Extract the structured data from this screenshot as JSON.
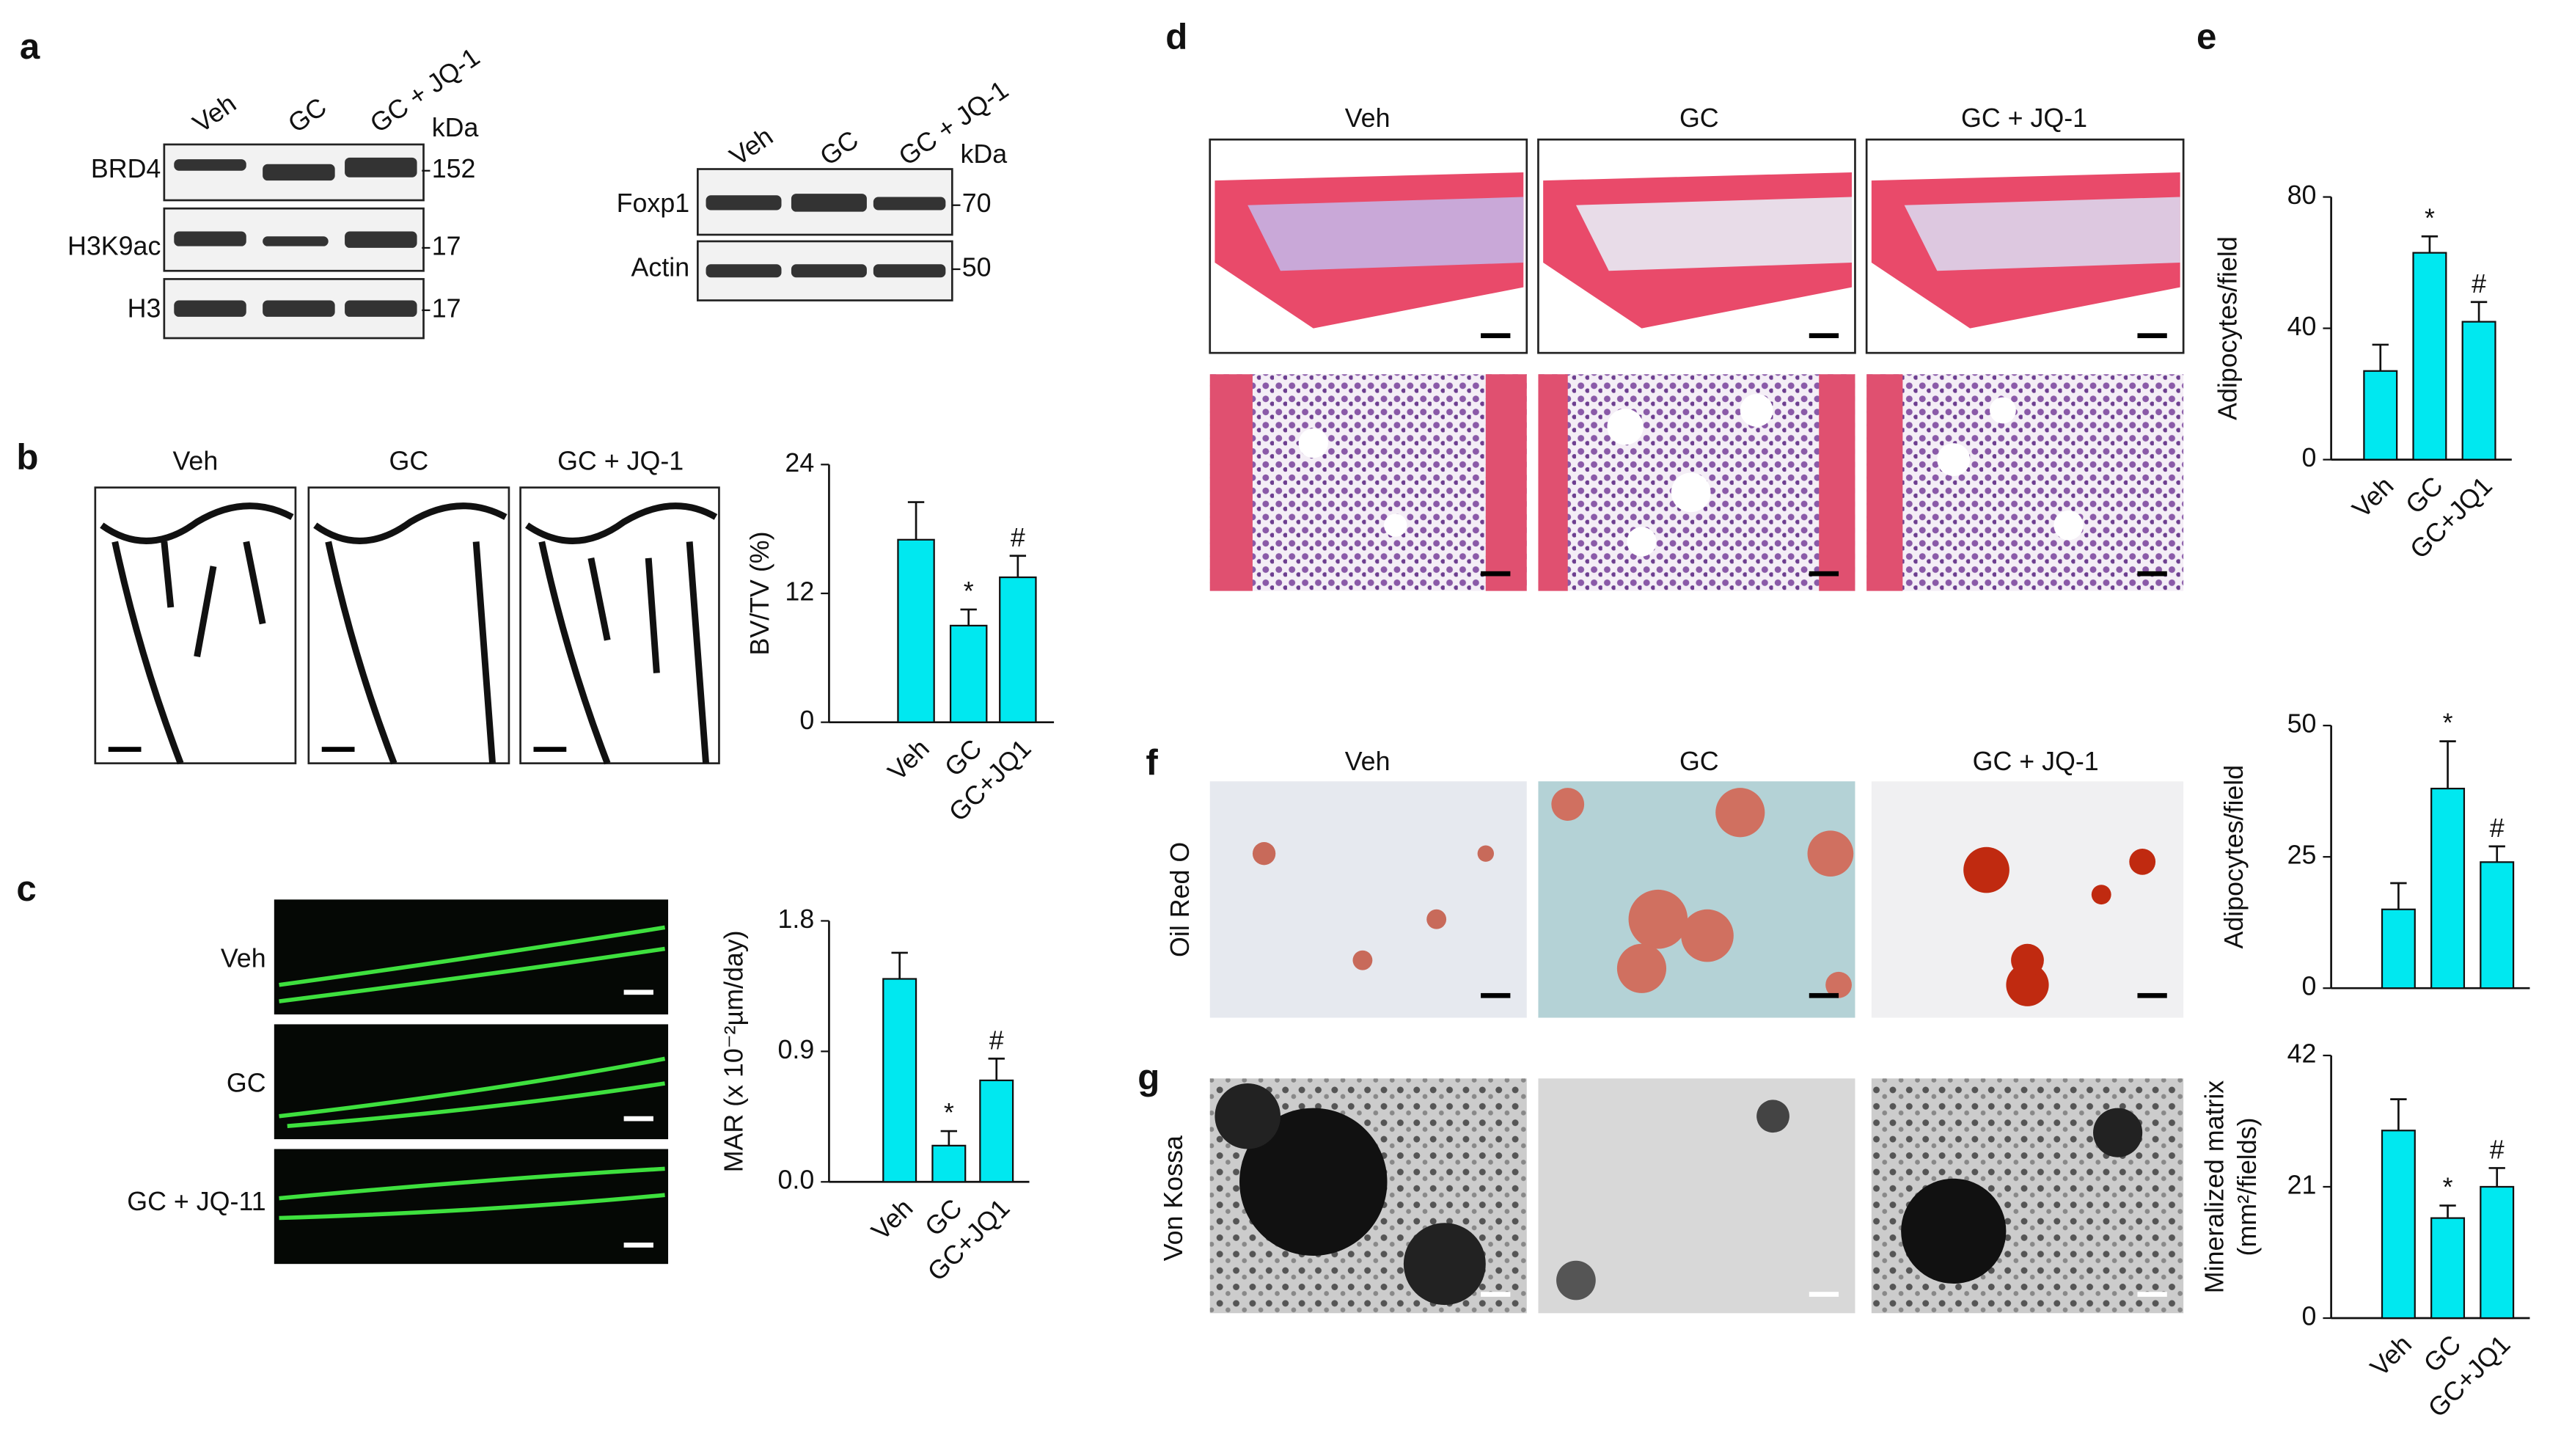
{
  "panel_labels": [
    "a",
    "b",
    "c",
    "d",
    "e",
    "f",
    "g"
  ],
  "western_brd4": {
    "lanes": [
      "Veh",
      "GC",
      "GC + JQ-1"
    ],
    "unit": "kDa",
    "rows": [
      {
        "name": "BRD4",
        "kda": 152
      },
      {
        "name": "H3K9ac",
        "kda": 17
      },
      {
        "name": "H3",
        "kda": 17
      }
    ]
  },
  "western_foxp1": {
    "lanes": [
      "Veh",
      "GC",
      "GC + JQ-1"
    ],
    "unit": "kDa",
    "rows": [
      {
        "name": "Foxp1",
        "kda": 70
      },
      {
        "name": "Actin",
        "kda": 50
      }
    ]
  },
  "microct_b": {
    "columns": [
      "Veh",
      "GC",
      "GC + JQ-1"
    ]
  },
  "calcein_c": {
    "rows": [
      "Veh",
      "GC",
      "GC +  JQ-11"
    ]
  },
  "histology_d": {
    "columns": [
      "Veh",
      "GC",
      "GC + JQ-1"
    ]
  },
  "culture_f": {
    "columns": [
      "Veh",
      "GC",
      "GC + JQ-1"
    ],
    "row_label": "Oil Red O"
  },
  "culture_g": {
    "row_label": "Von Kossa"
  },
  "chart_data": [
    {
      "type": "bar",
      "ylabel": "BV/TV (%)",
      "categories": [
        "Veh",
        "GC",
        "GC+JQ1"
      ],
      "values": [
        17,
        9,
        13.5
      ],
      "errors": [
        3.5,
        1.5,
        2
      ],
      "annotations": [
        null,
        "*",
        "#"
      ],
      "color": "#00e8f0",
      "ylim": [
        0,
        24
      ],
      "yticks": [
        0,
        12,
        24
      ]
    },
    {
      "type": "bar",
      "ylabel": "MAR (x 10⁻²µm/day)",
      "categories": [
        "Veh",
        "GC",
        "GC+JQ1"
      ],
      "values": [
        1.4,
        0.25,
        0.7
      ],
      "errors": [
        0.18,
        0.1,
        0.15
      ],
      "annotations": [
        null,
        "*",
        "#"
      ],
      "color": "#00e8f0",
      "ylim": [
        0,
        1.8
      ],
      "yticks": [
        {
          "value": 0,
          "label": "0.0"
        },
        0.9,
        1.8
      ]
    },
    {
      "type": "bar",
      "ylabel": "Adipocytes/field",
      "categories": [
        "Veh",
        "GC",
        "GC+JQ1"
      ],
      "values": [
        27,
        63,
        42
      ],
      "errors": [
        8,
        5,
        6
      ],
      "annotations": [
        null,
        "*",
        "#"
      ],
      "color": "#00e8f0",
      "ylim": [
        0,
        80
      ],
      "yticks": [
        0,
        40,
        80
      ]
    },
    {
      "type": "bar",
      "ylabel": "Adipocytes/field",
      "categories": [
        null,
        null,
        null
      ],
      "values": [
        15,
        38,
        24
      ],
      "errors": [
        5,
        9,
        3
      ],
      "annotations": [
        null,
        "*",
        "#"
      ],
      "color": "#00e8f0",
      "ylim": [
        0,
        50
      ],
      "yticks": [
        0,
        25,
        50
      ]
    },
    {
      "type": "bar",
      "ylabel": [
        "Mineralized matrix",
        "(mm²/fields)"
      ],
      "categories": [
        "Veh",
        "GC",
        "GC+JQ1"
      ],
      "values": [
        30,
        16,
        21
      ],
      "errors": [
        5,
        2,
        3
      ],
      "annotations": [
        null,
        "*",
        "#"
      ],
      "color": "#00e8f0",
      "ylim": [
        0,
        42
      ],
      "yticks": [
        0,
        21,
        42
      ]
    }
  ]
}
